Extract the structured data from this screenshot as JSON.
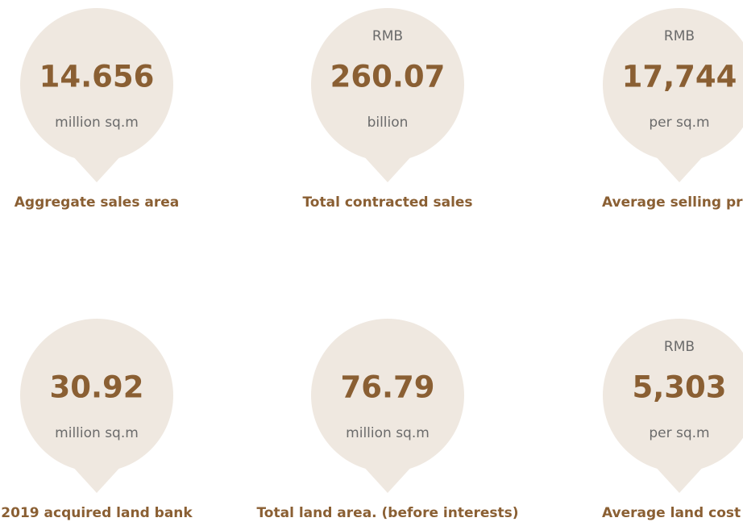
{
  "cards": [
    {
      "value": "14.656",
      "unit": "million sq.m",
      "label": "Aggregate sales area"
    },
    {
      "prefix": "RMB",
      "value": "260.07",
      "unit": "billion",
      "label": "Total contracted sales"
    },
    {
      "prefix": "RMB",
      "value": "17,744",
      "unit": "per sq.m",
      "label": "Average selling pric"
    },
    {
      "value": "30.92",
      "unit": "million sq.m",
      "label": "2019 acquired land bank"
    },
    {
      "value": "76.79",
      "unit": "million sq.m",
      "label": "Total land area. (before interests)"
    },
    {
      "prefix": "RMB",
      "value": "5,303",
      "unit": "per sq.m",
      "label": "Average land cost"
    }
  ]
}
